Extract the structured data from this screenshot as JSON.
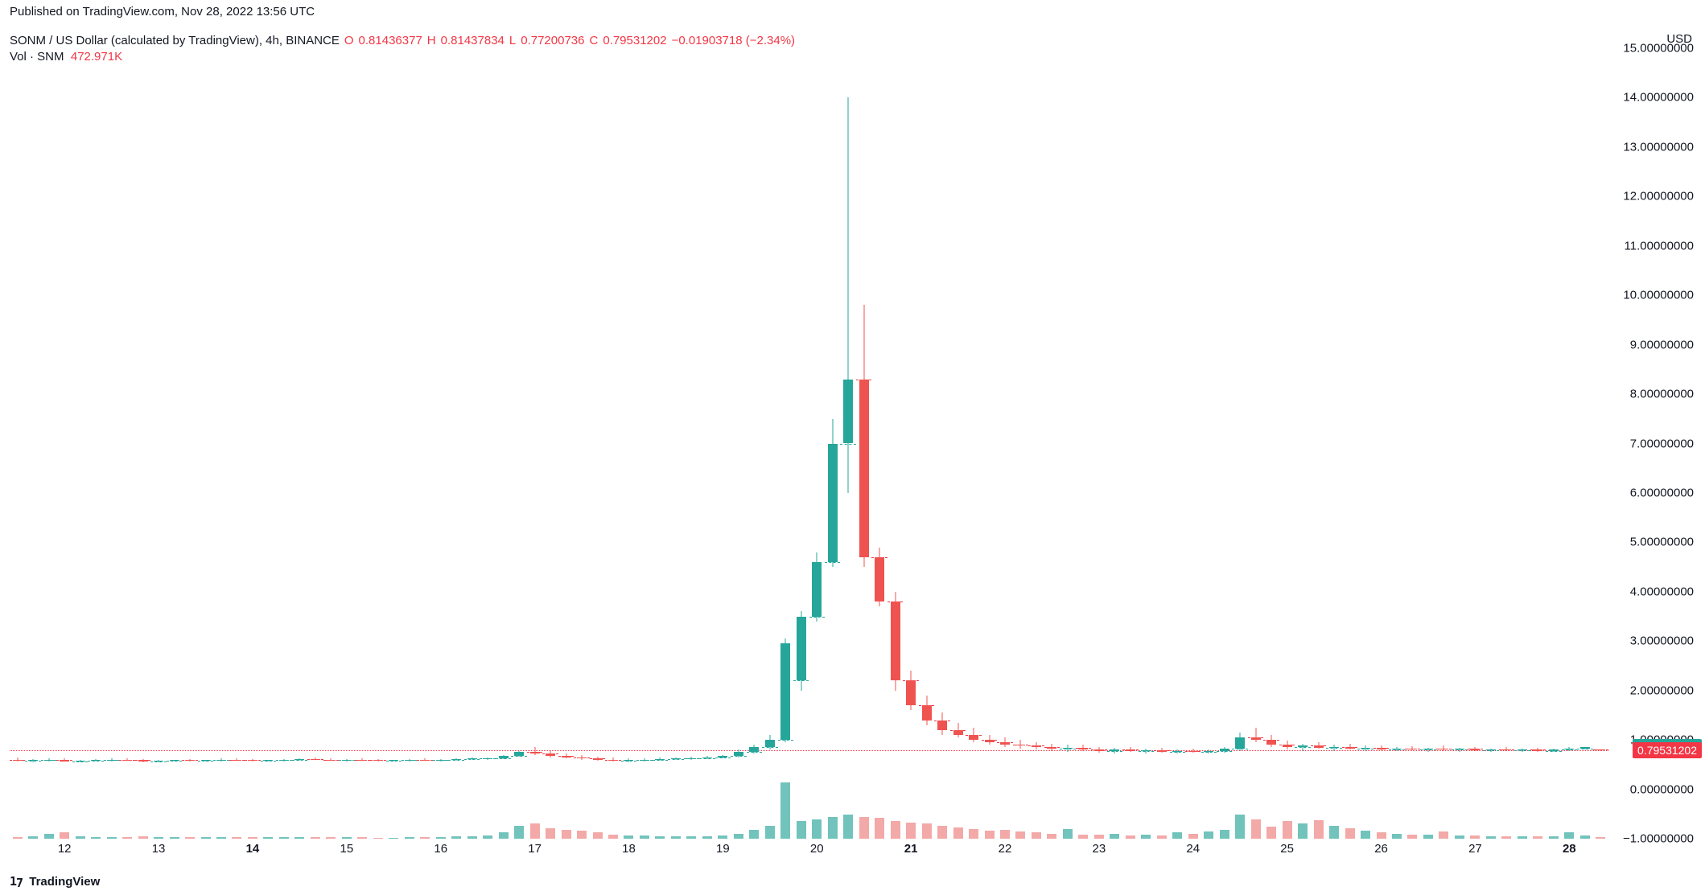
{
  "publishLine": "Published on TradingView.com, Nov 28, 2022 13:56 UTC",
  "legend": {
    "symbol": "SONM / US Dollar (calculated by TradingView), 4h, BINANCE",
    "O_label": "O",
    "O": "0.81436377",
    "H_label": "H",
    "H": "0.81437834",
    "L_label": "L",
    "L": "0.77200736",
    "C_label": "C",
    "C": "0.79531202",
    "change": "−0.01903718 (−2.34%)"
  },
  "volLegend": {
    "label": "Vol · SNM",
    "value": "472.971K"
  },
  "currency": "USD",
  "yAxis": {
    "min": -1.0,
    "max": 15.0,
    "ticks": [
      {
        "v": 15.0,
        "l": "15.00000000"
      },
      {
        "v": 14.0,
        "l": "14.00000000"
      },
      {
        "v": 13.0,
        "l": "13.00000000"
      },
      {
        "v": 12.0,
        "l": "12.00000000"
      },
      {
        "v": 11.0,
        "l": "11.00000000"
      },
      {
        "v": 10.0,
        "l": "10.00000000"
      },
      {
        "v": 9.0,
        "l": "9.00000000"
      },
      {
        "v": 8.0,
        "l": "8.00000000"
      },
      {
        "v": 7.0,
        "l": "7.00000000"
      },
      {
        "v": 6.0,
        "l": "6.00000000"
      },
      {
        "v": 5.0,
        "l": "5.00000000"
      },
      {
        "v": 4.0,
        "l": "4.00000000"
      },
      {
        "v": 3.0,
        "l": "3.00000000"
      },
      {
        "v": 2.0,
        "l": "2.00000000"
      },
      {
        "v": 1.0,
        "l": "1.00000000"
      },
      {
        "v": 0.0,
        "l": "0.00000000"
      },
      {
        "v": -1.0,
        "l": "−1.00000000"
      }
    ],
    "priceLines": [
      {
        "v": 0.85962182,
        "l": "0.85962182",
        "style": "green"
      },
      {
        "v": 0.79531202,
        "l": "0.79531202",
        "style": "red"
      }
    ]
  },
  "xAxis": {
    "ticks": [
      {
        "i": 3,
        "l": "12"
      },
      {
        "i": 9,
        "l": "13"
      },
      {
        "i": 15,
        "l": "14",
        "bold": true
      },
      {
        "i": 21,
        "l": "15"
      },
      {
        "i": 27,
        "l": "16"
      },
      {
        "i": 33,
        "l": "17"
      },
      {
        "i": 39,
        "l": "18"
      },
      {
        "i": 45,
        "l": "19"
      },
      {
        "i": 51,
        "l": "20"
      },
      {
        "i": 57,
        "l": "21",
        "bold": true
      },
      {
        "i": 63,
        "l": "22"
      },
      {
        "i": 69,
        "l": "23"
      },
      {
        "i": 75,
        "l": "24"
      },
      {
        "i": 81,
        "l": "25"
      },
      {
        "i": 87,
        "l": "26"
      },
      {
        "i": 93,
        "l": "27"
      },
      {
        "i": 99,
        "l": "28",
        "bold": true
      }
    ]
  },
  "style": {
    "upColor": "#26a69a",
    "downColor": "#ef5350",
    "upVolColor": "#71c3bc",
    "downVolColor": "#f2a9a7",
    "closeDashColor": "#f23645",
    "openDashColorUp": "#26a69a",
    "openDashColorDown": "#f23645",
    "candleWidth": 12,
    "nBars": 102,
    "volMaxHeight": 70
  },
  "maxVolume": 130,
  "candles": [
    {
      "o": 0.6,
      "h": 0.64,
      "l": 0.56,
      "c": 0.58,
      "v": 4
    },
    {
      "o": 0.58,
      "h": 0.61,
      "l": 0.55,
      "c": 0.59,
      "v": 5
    },
    {
      "o": 0.59,
      "h": 0.63,
      "l": 0.57,
      "c": 0.6,
      "v": 12
    },
    {
      "o": 0.6,
      "h": 0.62,
      "l": 0.56,
      "c": 0.57,
      "v": 14
    },
    {
      "o": 0.57,
      "h": 0.6,
      "l": 0.54,
      "c": 0.58,
      "v": 6
    },
    {
      "o": 0.58,
      "h": 0.61,
      "l": 0.56,
      "c": 0.59,
      "v": 4
    },
    {
      "o": 0.59,
      "h": 0.63,
      "l": 0.57,
      "c": 0.6,
      "v": 3
    },
    {
      "o": 0.6,
      "h": 0.62,
      "l": 0.58,
      "c": 0.59,
      "v": 3
    },
    {
      "o": 0.59,
      "h": 0.61,
      "l": 0.55,
      "c": 0.57,
      "v": 5
    },
    {
      "o": 0.57,
      "h": 0.6,
      "l": 0.55,
      "c": 0.58,
      "v": 4
    },
    {
      "o": 0.58,
      "h": 0.6,
      "l": 0.56,
      "c": 0.59,
      "v": 3
    },
    {
      "o": 0.59,
      "h": 0.61,
      "l": 0.57,
      "c": 0.58,
      "v": 3
    },
    {
      "o": 0.58,
      "h": 0.6,
      "l": 0.56,
      "c": 0.59,
      "v": 3
    },
    {
      "o": 0.59,
      "h": 0.62,
      "l": 0.57,
      "c": 0.6,
      "v": 4
    },
    {
      "o": 0.6,
      "h": 0.62,
      "l": 0.58,
      "c": 0.59,
      "v": 3
    },
    {
      "o": 0.59,
      "h": 0.61,
      "l": 0.57,
      "c": 0.58,
      "v": 3
    },
    {
      "o": 0.58,
      "h": 0.6,
      "l": 0.56,
      "c": 0.59,
      "v": 3
    },
    {
      "o": 0.59,
      "h": 0.61,
      "l": 0.57,
      "c": 0.6,
      "v": 3
    },
    {
      "o": 0.6,
      "h": 0.63,
      "l": 0.58,
      "c": 0.61,
      "v": 4
    },
    {
      "o": 0.61,
      "h": 0.64,
      "l": 0.59,
      "c": 0.6,
      "v": 3
    },
    {
      "o": 0.6,
      "h": 0.62,
      "l": 0.58,
      "c": 0.59,
      "v": 3
    },
    {
      "o": 0.59,
      "h": 0.61,
      "l": 0.57,
      "c": 0.6,
      "v": 3
    },
    {
      "o": 0.6,
      "h": 0.62,
      "l": 0.58,
      "c": 0.59,
      "v": 3
    },
    {
      "o": 0.59,
      "h": 0.61,
      "l": 0.57,
      "c": 0.58,
      "v": 2
    },
    {
      "o": 0.58,
      "h": 0.6,
      "l": 0.56,
      "c": 0.59,
      "v": 2
    },
    {
      "o": 0.59,
      "h": 0.61,
      "l": 0.57,
      "c": 0.6,
      "v": 3
    },
    {
      "o": 0.6,
      "h": 0.62,
      "l": 0.58,
      "c": 0.59,
      "v": 3
    },
    {
      "o": 0.59,
      "h": 0.61,
      "l": 0.57,
      "c": 0.6,
      "v": 4
    },
    {
      "o": 0.6,
      "h": 0.63,
      "l": 0.58,
      "c": 0.61,
      "v": 5
    },
    {
      "o": 0.61,
      "h": 0.64,
      "l": 0.59,
      "c": 0.62,
      "v": 6
    },
    {
      "o": 0.62,
      "h": 0.65,
      "l": 0.6,
      "c": 0.63,
      "v": 7
    },
    {
      "o": 0.63,
      "h": 0.7,
      "l": 0.61,
      "c": 0.68,
      "v": 15
    },
    {
      "o": 0.68,
      "h": 0.78,
      "l": 0.66,
      "c": 0.75,
      "v": 30
    },
    {
      "o": 0.75,
      "h": 0.85,
      "l": 0.7,
      "c": 0.72,
      "v": 35
    },
    {
      "o": 0.72,
      "h": 0.78,
      "l": 0.65,
      "c": 0.68,
      "v": 25
    },
    {
      "o": 0.68,
      "h": 0.72,
      "l": 0.62,
      "c": 0.65,
      "v": 20
    },
    {
      "o": 0.65,
      "h": 0.7,
      "l": 0.6,
      "c": 0.62,
      "v": 18
    },
    {
      "o": 0.62,
      "h": 0.66,
      "l": 0.58,
      "c": 0.6,
      "v": 14
    },
    {
      "o": 0.6,
      "h": 0.64,
      "l": 0.56,
      "c": 0.58,
      "v": 10
    },
    {
      "o": 0.58,
      "h": 0.62,
      "l": 0.55,
      "c": 0.59,
      "v": 8
    },
    {
      "o": 0.59,
      "h": 0.63,
      "l": 0.57,
      "c": 0.6,
      "v": 7
    },
    {
      "o": 0.6,
      "h": 0.64,
      "l": 0.58,
      "c": 0.61,
      "v": 6
    },
    {
      "o": 0.61,
      "h": 0.65,
      "l": 0.59,
      "c": 0.62,
      "v": 5
    },
    {
      "o": 0.62,
      "h": 0.66,
      "l": 0.6,
      "c": 0.63,
      "v": 5
    },
    {
      "o": 0.63,
      "h": 0.67,
      "l": 0.61,
      "c": 0.64,
      "v": 5
    },
    {
      "o": 0.64,
      "h": 0.7,
      "l": 0.62,
      "c": 0.68,
      "v": 8
    },
    {
      "o": 0.68,
      "h": 0.8,
      "l": 0.65,
      "c": 0.76,
      "v": 12
    },
    {
      "o": 0.76,
      "h": 0.9,
      "l": 0.72,
      "c": 0.85,
      "v": 20
    },
    {
      "o": 0.85,
      "h": 1.1,
      "l": 0.8,
      "c": 1.0,
      "v": 30
    },
    {
      "o": 1.0,
      "h": 3.05,
      "l": 0.95,
      "c": 2.95,
      "v": 130
    },
    {
      "o": 2.2,
      "h": 3.6,
      "l": 2.0,
      "c": 3.5,
      "v": 40
    },
    {
      "o": 3.5,
      "h": 4.8,
      "l": 3.4,
      "c": 4.6,
      "v": 45
    },
    {
      "o": 4.6,
      "h": 7.5,
      "l": 4.5,
      "c": 7.0,
      "v": 50
    },
    {
      "o": 7.0,
      "h": 14.0,
      "l": 6.0,
      "c": 8.3,
      "v": 55
    },
    {
      "o": 8.3,
      "h": 9.8,
      "l": 4.5,
      "c": 4.7,
      "v": 50
    },
    {
      "o": 4.7,
      "h": 4.9,
      "l": 3.7,
      "c": 3.8,
      "v": 48
    },
    {
      "o": 3.8,
      "h": 4.0,
      "l": 2.0,
      "c": 2.2,
      "v": 40
    },
    {
      "o": 2.2,
      "h": 2.4,
      "l": 1.6,
      "c": 1.7,
      "v": 38
    },
    {
      "o": 1.7,
      "h": 1.9,
      "l": 1.3,
      "c": 1.4,
      "v": 36
    },
    {
      "o": 1.4,
      "h": 1.55,
      "l": 1.1,
      "c": 1.2,
      "v": 30
    },
    {
      "o": 1.2,
      "h": 1.35,
      "l": 1.05,
      "c": 1.1,
      "v": 26
    },
    {
      "o": 1.1,
      "h": 1.25,
      "l": 0.95,
      "c": 1.0,
      "v": 22
    },
    {
      "o": 1.0,
      "h": 1.1,
      "l": 0.9,
      "c": 0.95,
      "v": 18
    },
    {
      "o": 0.95,
      "h": 1.05,
      "l": 0.85,
      "c": 0.9,
      "v": 20
    },
    {
      "o": 0.9,
      "h": 1.0,
      "l": 0.82,
      "c": 0.88,
      "v": 16
    },
    {
      "o": 0.88,
      "h": 0.96,
      "l": 0.8,
      "c": 0.85,
      "v": 14
    },
    {
      "o": 0.85,
      "h": 0.92,
      "l": 0.78,
      "c": 0.82,
      "v": 12
    },
    {
      "o": 0.82,
      "h": 0.9,
      "l": 0.76,
      "c": 0.84,
      "v": 22
    },
    {
      "o": 0.84,
      "h": 0.9,
      "l": 0.78,
      "c": 0.8,
      "v": 10
    },
    {
      "o": 0.8,
      "h": 0.86,
      "l": 0.74,
      "c": 0.78,
      "v": 9
    },
    {
      "o": 0.78,
      "h": 0.84,
      "l": 0.72,
      "c": 0.8,
      "v": 12
    },
    {
      "o": 0.8,
      "h": 0.85,
      "l": 0.75,
      "c": 0.77,
      "v": 8
    },
    {
      "o": 0.77,
      "h": 0.82,
      "l": 0.72,
      "c": 0.79,
      "v": 10
    },
    {
      "o": 0.79,
      "h": 0.84,
      "l": 0.74,
      "c": 0.76,
      "v": 8
    },
    {
      "o": 0.76,
      "h": 0.81,
      "l": 0.72,
      "c": 0.78,
      "v": 14
    },
    {
      "o": 0.78,
      "h": 0.82,
      "l": 0.74,
      "c": 0.76,
      "v": 12
    },
    {
      "o": 0.76,
      "h": 0.8,
      "l": 0.72,
      "c": 0.78,
      "v": 16
    },
    {
      "o": 0.78,
      "h": 0.85,
      "l": 0.74,
      "c": 0.82,
      "v": 20
    },
    {
      "o": 0.82,
      "h": 1.15,
      "l": 0.78,
      "c": 1.05,
      "v": 55
    },
    {
      "o": 1.05,
      "h": 1.25,
      "l": 0.95,
      "c": 1.0,
      "v": 45
    },
    {
      "o": 1.0,
      "h": 1.1,
      "l": 0.85,
      "c": 0.9,
      "v": 28
    },
    {
      "o": 0.9,
      "h": 0.98,
      "l": 0.8,
      "c": 0.85,
      "v": 40
    },
    {
      "o": 0.85,
      "h": 0.92,
      "l": 0.78,
      "c": 0.88,
      "v": 35
    },
    {
      "o": 0.88,
      "h": 0.95,
      "l": 0.82,
      "c": 0.84,
      "v": 42
    },
    {
      "o": 0.84,
      "h": 0.9,
      "l": 0.78,
      "c": 0.86,
      "v": 30
    },
    {
      "o": 0.86,
      "h": 0.92,
      "l": 0.8,
      "c": 0.82,
      "v": 24
    },
    {
      "o": 0.82,
      "h": 0.88,
      "l": 0.77,
      "c": 0.84,
      "v": 18
    },
    {
      "o": 0.84,
      "h": 0.88,
      "l": 0.79,
      "c": 0.81,
      "v": 14
    },
    {
      "o": 0.81,
      "h": 0.86,
      "l": 0.77,
      "c": 0.83,
      "v": 12
    },
    {
      "o": 0.83,
      "h": 0.87,
      "l": 0.79,
      "c": 0.8,
      "v": 10
    },
    {
      "o": 0.8,
      "h": 0.84,
      "l": 0.76,
      "c": 0.82,
      "v": 9
    },
    {
      "o": 0.82,
      "h": 0.88,
      "l": 0.78,
      "c": 0.8,
      "v": 16
    },
    {
      "o": 0.8,
      "h": 0.84,
      "l": 0.76,
      "c": 0.82,
      "v": 8
    },
    {
      "o": 0.82,
      "h": 0.86,
      "l": 0.78,
      "c": 0.79,
      "v": 7
    },
    {
      "o": 0.79,
      "h": 0.83,
      "l": 0.75,
      "c": 0.81,
      "v": 6
    },
    {
      "o": 0.81,
      "h": 0.85,
      "l": 0.77,
      "c": 0.79,
      "v": 5
    },
    {
      "o": 0.79,
      "h": 0.83,
      "l": 0.75,
      "c": 0.8,
      "v": 5
    },
    {
      "o": 0.8,
      "h": 0.84,
      "l": 0.76,
      "c": 0.78,
      "v": 5
    },
    {
      "o": 0.78,
      "h": 0.82,
      "l": 0.75,
      "c": 0.8,
      "v": 6
    },
    {
      "o": 0.8,
      "h": 0.85,
      "l": 0.77,
      "c": 0.82,
      "v": 14
    },
    {
      "o": 0.82,
      "h": 0.86,
      "l": 0.81,
      "c": 0.86,
      "v": 8
    },
    {
      "o": 0.81,
      "h": 0.81,
      "l": 0.77,
      "c": 0.8,
      "v": 4
    }
  ],
  "attribution": "TradingView"
}
